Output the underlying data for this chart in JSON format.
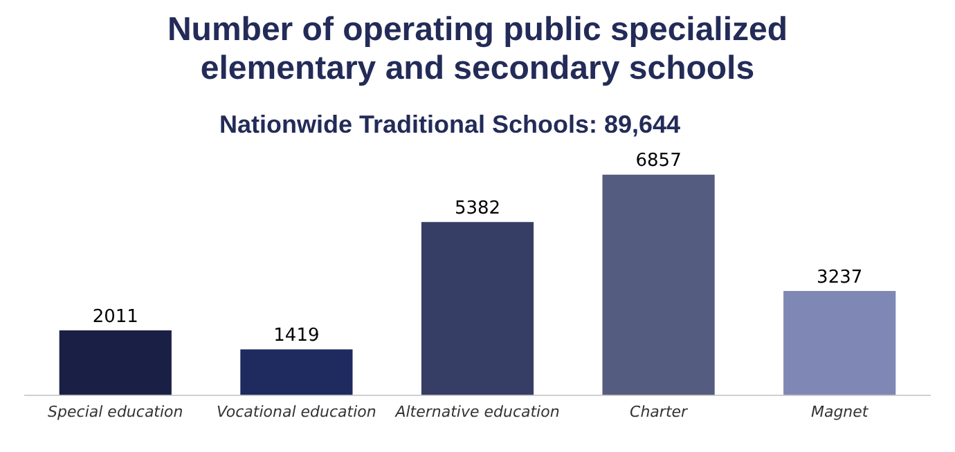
{
  "chart_data": {
    "type": "bar",
    "title": "Number of operating public specialized elementary and secondary schools",
    "subtitle": "Nationwide Traditional Schools: 89,644",
    "categories": [
      "Special education",
      "Vocational education",
      "Alternative education",
      "Charter",
      "Magnet"
    ],
    "values": [
      2011,
      1419,
      5382,
      6857,
      3237
    ],
    "colors": [
      "#1a2045",
      "#1f2a5e",
      "#363e66",
      "#545c80",
      "#7f88b5"
    ],
    "data_labels": true,
    "grid": false,
    "legend": false,
    "tick_labels": "x"
  }
}
